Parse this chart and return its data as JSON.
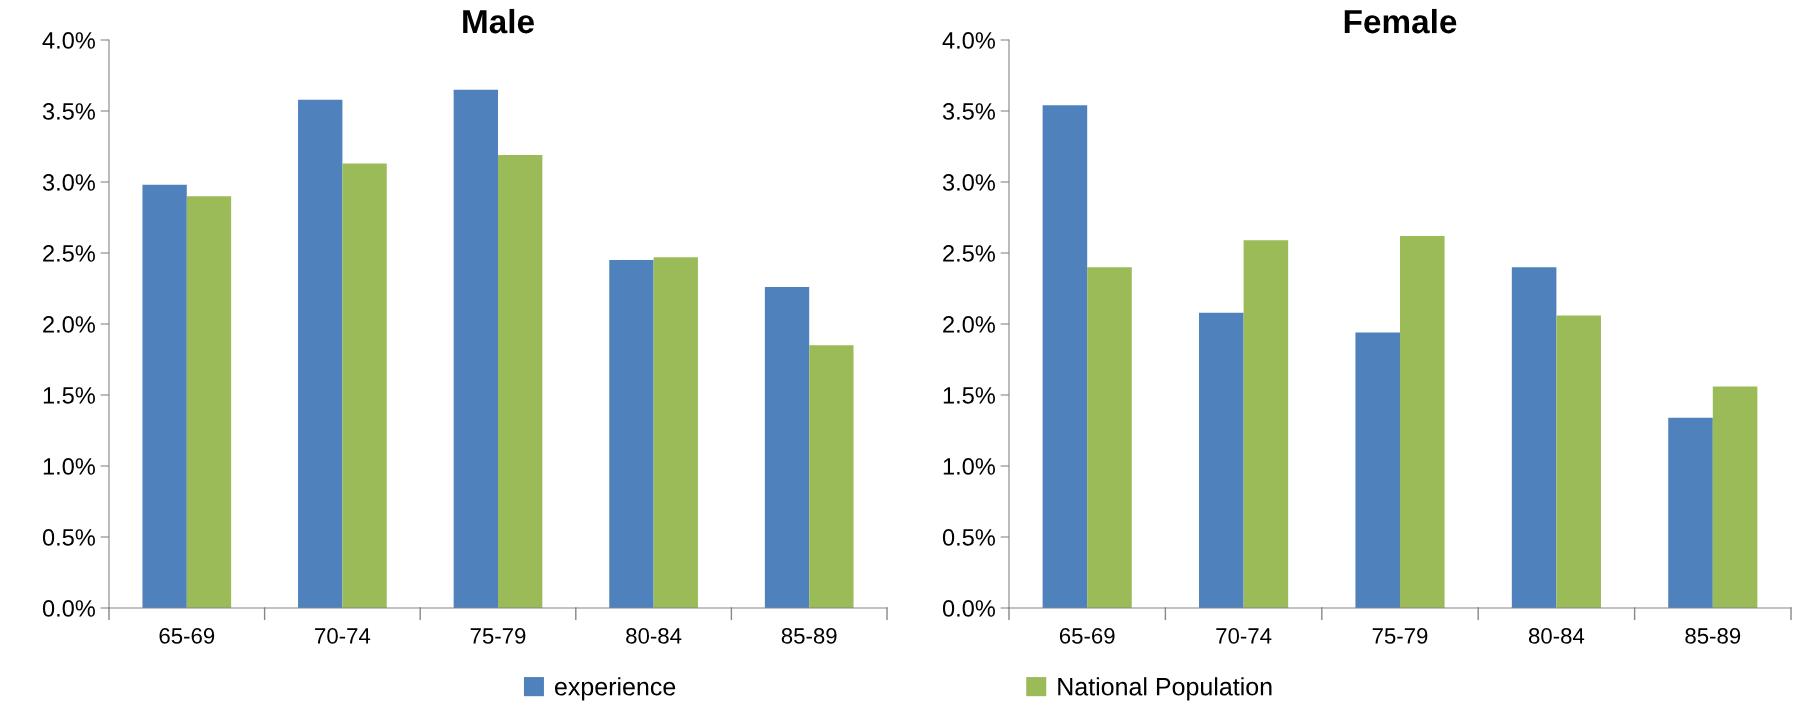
{
  "chart_data": [
    {
      "type": "bar",
      "title": "Male",
      "categories": [
        "65-69",
        "70-74",
        "75-79",
        "80-84",
        "85-89"
      ],
      "series": [
        {
          "name": "experience",
          "color": "#4f81bd",
          "values": [
            2.98,
            3.58,
            3.65,
            2.45,
            2.26
          ]
        },
        {
          "name": "National Population",
          "color": "#9bbb59",
          "values": [
            2.9,
            3.13,
            3.19,
            2.47,
            1.85
          ]
        }
      ],
      "ylim": [
        0,
        4
      ],
      "yticks": [
        {
          "value": 0,
          "label": "0.0%"
        },
        {
          "value": 0.5,
          "label": "0.5%"
        },
        {
          "value": 1,
          "label": "1.0%"
        },
        {
          "value": 1.5,
          "label": "1.5%"
        },
        {
          "value": 2,
          "label": "2.0%"
        },
        {
          "value": 2.5,
          "label": "2.5%"
        },
        {
          "value": 3,
          "label": "3.0%"
        },
        {
          "value": 3.5,
          "label": "3.5%"
        },
        {
          "value": 4,
          "label": "4.0%"
        }
      ],
      "grid": false,
      "legend": "bottom"
    },
    {
      "type": "bar",
      "title": "Female",
      "categories": [
        "65-69",
        "70-74",
        "75-79",
        "80-84",
        "85-89"
      ],
      "series": [
        {
          "color": "#4f81bd",
          "values": [
            3.54,
            2.08,
            1.94,
            2.4,
            1.34
          ]
        },
        {
          "color": "#9bbb59",
          "values": [
            2.4,
            2.59,
            2.62,
            2.06,
            1.56
          ]
        }
      ],
      "ylim": [
        0,
        4
      ],
      "yticks": [
        {
          "value": 0,
          "label": "0.0%"
        },
        {
          "value": 0.5,
          "label": "0.5%"
        },
        {
          "value": 1,
          "label": "1.0%"
        },
        {
          "value": 1.5,
          "label": "1.5%"
        },
        {
          "value": 2,
          "label": "2.0%"
        },
        {
          "value": 2.5,
          "label": "2.5%"
        },
        {
          "value": 3,
          "label": "3.0%"
        },
        {
          "value": 3.5,
          "label": "3.5%"
        },
        {
          "value": 4,
          "label": "4.0%"
        }
      ],
      "grid": false,
      "legend": false
    }
  ]
}
